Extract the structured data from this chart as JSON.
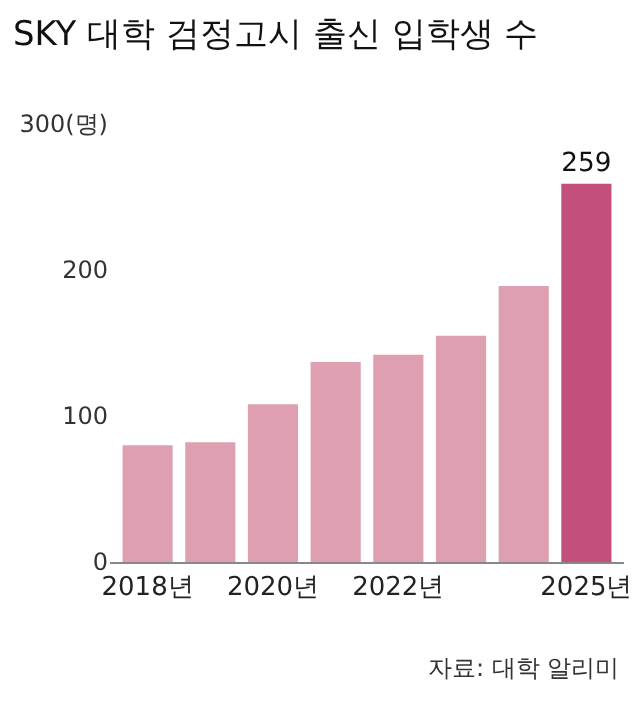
{
  "chart_data": {
    "type": "bar",
    "title": "SKY 대학 검정고시 출신 입학생 수",
    "categories": [
      "2018년",
      null,
      "2020년",
      null,
      "2022년",
      null,
      null,
      "2025년"
    ],
    "values": [
      80,
      82,
      108,
      137,
      142,
      155,
      189,
      259
    ],
    "colors": [
      "#dea0b0",
      "#dea0b0",
      "#dea0b0",
      "#dea0b0",
      "#dea0b0",
      "#dea0b0",
      "#dea0b0",
      "#c24f7c"
    ],
    "value_labels": [
      null,
      null,
      null,
      null,
      null,
      null,
      null,
      "259"
    ],
    "ylim": [
      0,
      300
    ],
    "yticks": [
      0,
      100,
      200,
      {
        "value": 300,
        "label": "300(명)"
      }
    ],
    "annotations": [
      "자료: 대학 알리미"
    ]
  }
}
